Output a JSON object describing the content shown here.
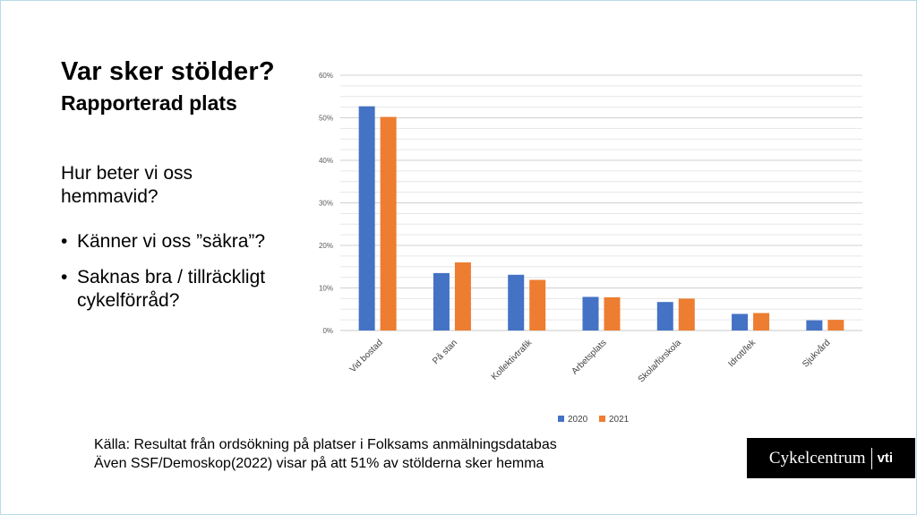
{
  "slide": {
    "title": "Var sker stölder?",
    "subtitle": "Rapporterad plats",
    "question": "Hur beter vi oss hemmavid?",
    "bullets": [
      "Känner vi oss ”säkra”?",
      "Saknas bra / tillräckligt cykelförråd?"
    ],
    "source_lines": [
      "Källa: Resultat från ordsökning på platser i Folksams anmälningsdatabas",
      "Även SSF/Demoskop(2022) visar på att 51% av stölderna sker hemma"
    ],
    "logo": {
      "main": "Cykelcentrum",
      "sub": "vti"
    }
  },
  "chart_data": {
    "type": "bar",
    "title": "",
    "xlabel": "",
    "ylabel": "",
    "categories": [
      "Vid bostad",
      "På stan",
      "Kollektivtrafik",
      "Arbetsplats",
      "Skola/förskola",
      "Idrott/lek",
      "Sjukvård"
    ],
    "series": [
      {
        "name": "2020",
        "color": "#4472c4",
        "values": [
          52.7,
          13.5,
          13.1,
          7.9,
          6.7,
          3.9,
          2.4
        ]
      },
      {
        "name": "2021",
        "color": "#ed7d31",
        "values": [
          50.2,
          16.0,
          11.9,
          7.8,
          7.5,
          4.1,
          2.5
        ]
      }
    ],
    "ylim": [
      0,
      60
    ],
    "y_ticks": [
      "0%",
      "10%",
      "20%",
      "30%",
      "40%",
      "50%",
      "60%"
    ],
    "grid": true,
    "legend": "bottom"
  }
}
